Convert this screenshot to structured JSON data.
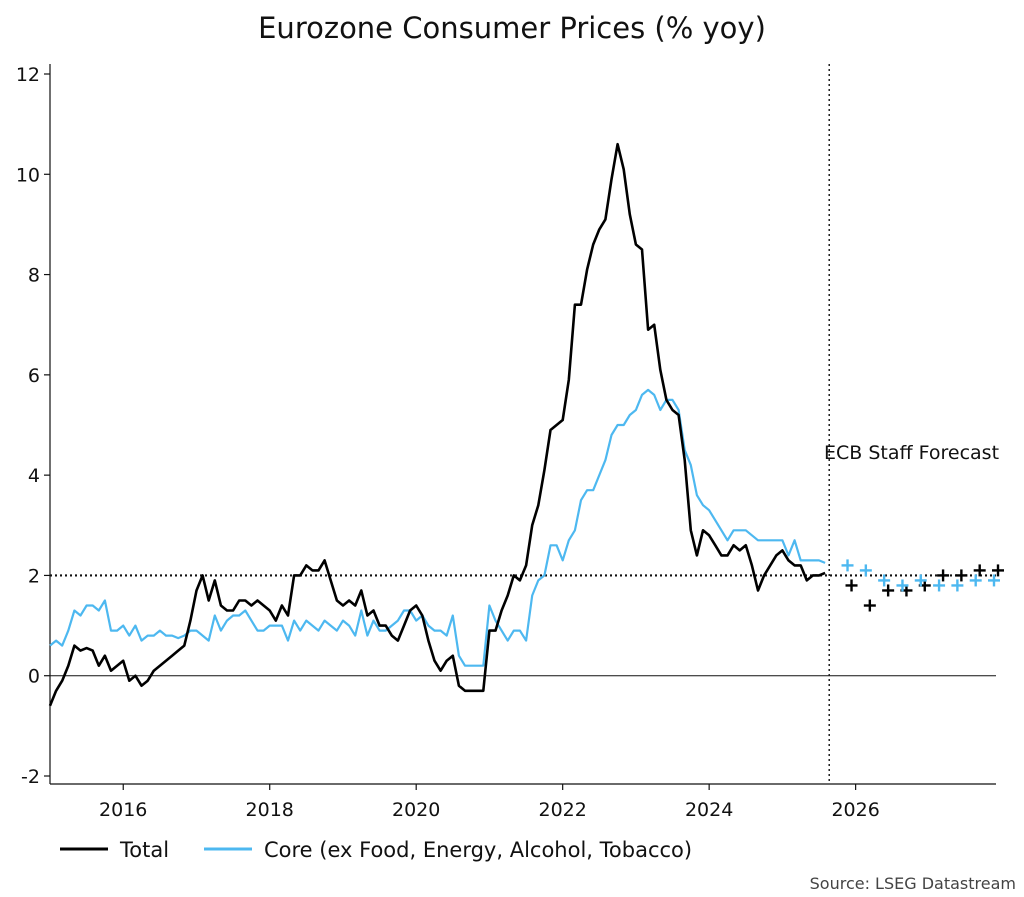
{
  "chart_data": {
    "type": "line",
    "title": "Eurozone Consumer Prices (% yoy)",
    "xlabel": "",
    "ylabel": "",
    "x_range": [
      "2015-01",
      "2027-12"
    ],
    "ylim": [
      -2,
      12
    ],
    "y_ticks": [
      "-2",
      "0",
      "2",
      "4",
      "6",
      "8",
      "10",
      "12"
    ],
    "x_ticks": [
      {
        "label": "2016",
        "date": "2016-01"
      },
      {
        "label": "2018",
        "date": "2018-01"
      },
      {
        "label": "2020",
        "date": "2020-01"
      },
      {
        "label": "2022",
        "date": "2022-01"
      },
      {
        "label": "2024",
        "date": "2024-01"
      },
      {
        "label": "2026",
        "date": "2026-01"
      }
    ],
    "reference_line": {
      "y": 2,
      "style": "dotted"
    },
    "forecast_divider": {
      "date": "2025-09",
      "label": "ECB Staff Forecast"
    },
    "legend_position": "bottom-left",
    "grid": false,
    "source": "Source: LSEG Datastream",
    "series": [
      {
        "name": "Total",
        "color": "#000000",
        "start": "2015-01",
        "values": [
          -0.6,
          -0.3,
          -0.1,
          0.2,
          0.6,
          0.5,
          0.55,
          0.5,
          0.2,
          0.4,
          0.1,
          0.2,
          0.3,
          -0.1,
          0.0,
          -0.2,
          -0.1,
          0.1,
          0.2,
          0.3,
          0.4,
          0.5,
          0.6,
          1.1,
          1.7,
          2.0,
          1.5,
          1.9,
          1.4,
          1.3,
          1.3,
          1.5,
          1.5,
          1.4,
          1.5,
          1.4,
          1.3,
          1.1,
          1.4,
          1.2,
          2.0,
          2.0,
          2.2,
          2.1,
          2.1,
          2.3,
          1.9,
          1.5,
          1.4,
          1.5,
          1.4,
          1.7,
          1.2,
          1.3,
          1.0,
          1.0,
          0.8,
          0.7,
          1.0,
          1.3,
          1.4,
          1.2,
          0.7,
          0.3,
          0.1,
          0.3,
          0.4,
          -0.2,
          -0.3,
          -0.3,
          -0.3,
          -0.3,
          0.9,
          0.9,
          1.3,
          1.6,
          2.0,
          1.9,
          2.2,
          3.0,
          3.4,
          4.1,
          4.9,
          5.0,
          5.1,
          5.9,
          7.4,
          7.4,
          8.1,
          8.6,
          8.9,
          9.1,
          9.9,
          10.6,
          10.1,
          9.2,
          8.6,
          8.5,
          6.9,
          7.0,
          6.1,
          5.5,
          5.3,
          5.2,
          4.3,
          2.9,
          2.4,
          2.9,
          2.8,
          2.6,
          2.4,
          2.4,
          2.6,
          2.5,
          2.6,
          2.2,
          1.7,
          2.0,
          2.2,
          2.4,
          2.5,
          2.3,
          2.2,
          2.2,
          1.9,
          2.0,
          2.0,
          2.05
        ],
        "forecast": [
          {
            "date": "2025-12",
            "value": 1.8
          },
          {
            "date": "2026-03",
            "value": 1.4
          },
          {
            "date": "2026-06",
            "value": 1.7
          },
          {
            "date": "2026-09",
            "value": 1.7
          },
          {
            "date": "2026-12",
            "value": 1.8
          },
          {
            "date": "2027-03",
            "value": 2.0
          },
          {
            "date": "2027-06",
            "value": 2.0
          },
          {
            "date": "2027-09",
            "value": 2.1
          },
          {
            "date": "2027-12",
            "value": 2.1
          }
        ]
      },
      {
        "name": "Core (ex Food, Energy, Alcohol, Tobacco)",
        "color": "#4db8f0",
        "start": "2015-01",
        "values": [
          0.6,
          0.7,
          0.6,
          0.9,
          1.3,
          1.2,
          1.4,
          1.4,
          1.3,
          1.5,
          0.9,
          0.9,
          1.0,
          0.8,
          1.0,
          0.7,
          0.8,
          0.8,
          0.9,
          0.8,
          0.8,
          0.75,
          0.8,
          0.9,
          0.9,
          0.8,
          0.7,
          1.2,
          0.9,
          1.1,
          1.2,
          1.2,
          1.3,
          1.1,
          0.9,
          0.9,
          1.0,
          1.0,
          1.0,
          0.7,
          1.1,
          0.9,
          1.1,
          1.0,
          0.9,
          1.1,
          1.0,
          0.9,
          1.1,
          1.0,
          0.8,
          1.3,
          0.8,
          1.1,
          0.9,
          0.9,
          1.0,
          1.1,
          1.3,
          1.3,
          1.1,
          1.2,
          1.0,
          0.9,
          0.9,
          0.8,
          1.2,
          0.4,
          0.2,
          0.2,
          0.2,
          0.2,
          1.4,
          1.1,
          0.9,
          0.7,
          0.9,
          0.9,
          0.7,
          1.6,
          1.9,
          2.0,
          2.6,
          2.6,
          2.3,
          2.7,
          2.9,
          3.5,
          3.7,
          3.7,
          4.0,
          4.3,
          4.8,
          5.0,
          5.0,
          5.2,
          5.3,
          5.6,
          5.7,
          5.6,
          5.3,
          5.5,
          5.5,
          5.3,
          4.5,
          4.2,
          3.6,
          3.4,
          3.3,
          3.1,
          2.9,
          2.7,
          2.9,
          2.9,
          2.9,
          2.8,
          2.7,
          2.7,
          2.7,
          2.7,
          2.7,
          2.4,
          2.7,
          2.3,
          2.3,
          2.3,
          2.3,
          2.25
        ],
        "forecast": [
          {
            "date": "2025-12",
            "value": 2.2
          },
          {
            "date": "2026-03",
            "value": 2.1
          },
          {
            "date": "2026-06",
            "value": 1.9
          },
          {
            "date": "2026-09",
            "value": 1.8
          },
          {
            "date": "2026-12",
            "value": 1.9
          },
          {
            "date": "2027-03",
            "value": 1.8
          },
          {
            "date": "2027-06",
            "value": 1.8
          },
          {
            "date": "2027-09",
            "value": 1.9
          },
          {
            "date": "2027-12",
            "value": 1.9
          }
        ]
      }
    ]
  }
}
